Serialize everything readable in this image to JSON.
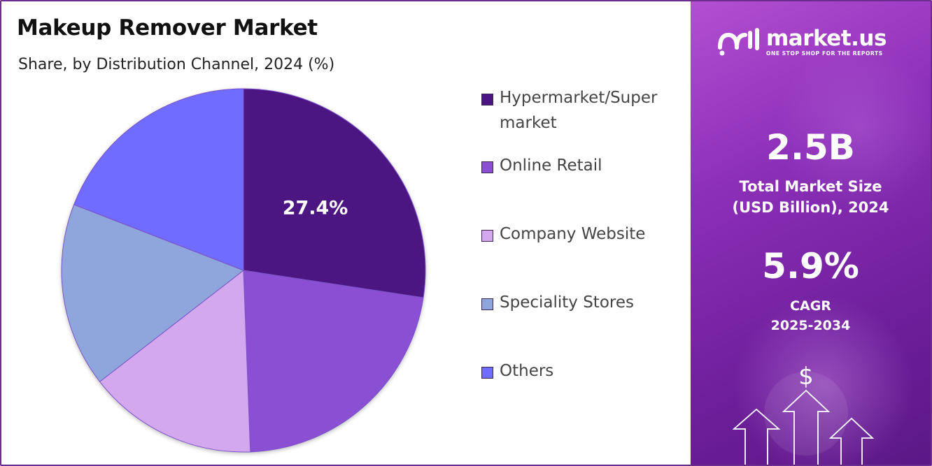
{
  "header": {
    "title": "Makeup Remover Market",
    "subtitle": "Share, by Distribution Channel, 2024 (%)"
  },
  "chart_data": {
    "type": "pie",
    "title": "Makeup Remover Market",
    "subtitle": "Share, by Distribution Channel, 2024 (%)",
    "categories": [
      "Hypermarket/Supermarket",
      "Online Retail",
      "Company Website",
      "Speciality Stores",
      "Others"
    ],
    "legend_labels": [
      "Hypermarket/Super market",
      "Online Retail",
      "Company Website",
      "Speciality Stores",
      "Others"
    ],
    "values": [
      27.4,
      22.0,
      15.1,
      16.4,
      19.1
    ],
    "data_labels": [
      "27.4%",
      "",
      "",
      "",
      ""
    ],
    "colors": [
      "#4b1582",
      "#8a4fd3",
      "#d4a8ef",
      "#8fa6dc",
      "#6f6cff"
    ],
    "legend_placement": "right",
    "start_angle_deg": 0,
    "direction": "clockwise"
  },
  "sidebar": {
    "brand_name": "market.us",
    "brand_tagline": "ONE STOP SHOP FOR THE REPORTS",
    "market_size_value": "2.5B",
    "market_size_label_line1": "Total Market Size",
    "market_size_label_line2": "(USD Billion), 2024",
    "cagr_value": "5.9%",
    "cagr_label_line1": "CAGR",
    "cagr_label_line2": "2025-2034",
    "dollar_symbol": "$",
    "colors": {
      "panel_top": "#b34fd2",
      "panel_bottom": "#5b1886",
      "text": "#ffffff"
    }
  }
}
